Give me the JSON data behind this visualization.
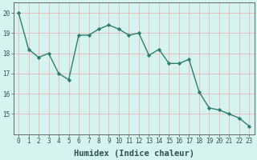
{
  "xlabel": "Humidex (Indice chaleur)",
  "x": [
    0,
    1,
    2,
    3,
    4,
    5,
    6,
    7,
    8,
    9,
    10,
    11,
    12,
    13,
    14,
    15,
    16,
    17,
    18,
    19,
    20,
    21,
    22,
    23
  ],
  "y": [
    20.0,
    18.2,
    17.8,
    18.0,
    17.0,
    16.7,
    18.9,
    18.9,
    19.2,
    19.4,
    19.2,
    18.9,
    19.0,
    17.9,
    18.2,
    17.5,
    17.5,
    17.7,
    16.1,
    15.3,
    15.2,
    15.0,
    14.8,
    14.4
  ],
  "line_color": "#2e7d6e",
  "marker": "D",
  "marker_size": 2.2,
  "line_width": 1.0,
  "bg_color": "#d6f4ef",
  "grid_color_v": "#e8b8b8",
  "grid_color_h": "#e8b8b8",
  "axis_bg": "#d6f4ef",
  "ylim": [
    14.0,
    20.5
  ],
  "xlim": [
    -0.5,
    23.5
  ],
  "yticks": [
    15,
    16,
    17,
    18,
    19,
    20
  ],
  "xticks": [
    0,
    1,
    2,
    3,
    4,
    5,
    6,
    7,
    8,
    9,
    10,
    11,
    12,
    13,
    14,
    15,
    16,
    17,
    18,
    19,
    20,
    21,
    22,
    23
  ],
  "tick_label_fontsize": 5.5,
  "xlabel_fontsize": 7.5,
  "spine_color": "#666666"
}
